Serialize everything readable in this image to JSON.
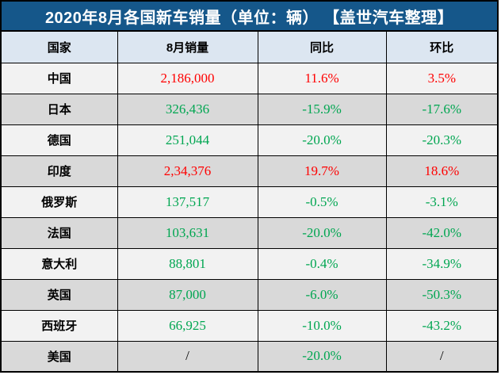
{
  "title": "2020年8月各国新车销量（单位：辆） 【盖世汽车整理】",
  "table": {
    "columns": [
      "国家",
      "8月销量",
      "同比",
      "环比"
    ],
    "rows": [
      {
        "country": "中国",
        "sales": "2,186,000",
        "yoy": "11.6%",
        "mom": "3.5%",
        "trend": "up"
      },
      {
        "country": "日本",
        "sales": "326,436",
        "yoy": "-15.9%",
        "mom": "-17.6%",
        "trend": "down"
      },
      {
        "country": "德国",
        "sales": "251,044",
        "yoy": "-20.0%",
        "mom": "-20.3%",
        "trend": "down"
      },
      {
        "country": "印度",
        "sales": "2,34,376",
        "yoy": "19.7%",
        "mom": "18.6%",
        "trend": "up"
      },
      {
        "country": "俄罗斯",
        "sales": "137,517",
        "yoy": "-0.5%",
        "mom": "-3.1%",
        "trend": "down"
      },
      {
        "country": "法国",
        "sales": "103,631",
        "yoy": "-20.0%",
        "mom": "-42.0%",
        "trend": "down"
      },
      {
        "country": "意大利",
        "sales": "88,801",
        "yoy": "-0.4%",
        "mom": "-34.9%",
        "trend": "down"
      },
      {
        "country": "英国",
        "sales": "87,000",
        "yoy": "-6.0%",
        "mom": "-50.3%",
        "trend": "down"
      },
      {
        "country": "西班牙",
        "sales": "66,925",
        "yoy": "-10.0%",
        "mom": "-43.2%",
        "trend": "down"
      },
      {
        "country": "美国",
        "sales": "/",
        "yoy": "-20.0%",
        "mom": "/",
        "trend": "down"
      }
    ]
  },
  "colors": {
    "title_bg": "#15578A",
    "title_text": "#FFFFFF",
    "header_bg": "#DCE6F1",
    "row_odd_bg": "#F2F2F2",
    "row_even_bg": "#D9D9D9",
    "positive_text": "#FF0000",
    "negative_text": "#00A651",
    "neutral_text": "#000000",
    "border": "#000000"
  },
  "chart_data": {
    "type": "table",
    "title": "2020年8月各国新车销量（单位：辆） 【盖世汽车整理】",
    "columns": [
      "国家",
      "8月销量",
      "同比",
      "环比"
    ],
    "rows": [
      [
        "中国",
        "2,186,000",
        "11.6%",
        "3.5%"
      ],
      [
        "日本",
        "326,436",
        "-15.9%",
        "-17.6%"
      ],
      [
        "德国",
        "251,044",
        "-20.0%",
        "-20.3%"
      ],
      [
        "印度",
        "2,34,376",
        "19.7%",
        "18.6%"
      ],
      [
        "俄罗斯",
        "137,517",
        "-0.5%",
        "-3.1%"
      ],
      [
        "法国",
        "103,631",
        "-20.0%",
        "-42.0%"
      ],
      [
        "意大利",
        "88,801",
        "-0.4%",
        "-34.9%"
      ],
      [
        "英国",
        "87,000",
        "-6.0%",
        "-50.3%"
      ],
      [
        "西班牙",
        "66,925",
        "-10.0%",
        "-43.2%"
      ],
      [
        "美国",
        "/",
        "-20.0%",
        "/"
      ]
    ],
    "notes": "red = growth (同比/环比 positive), green = decline, '/' = no data"
  }
}
